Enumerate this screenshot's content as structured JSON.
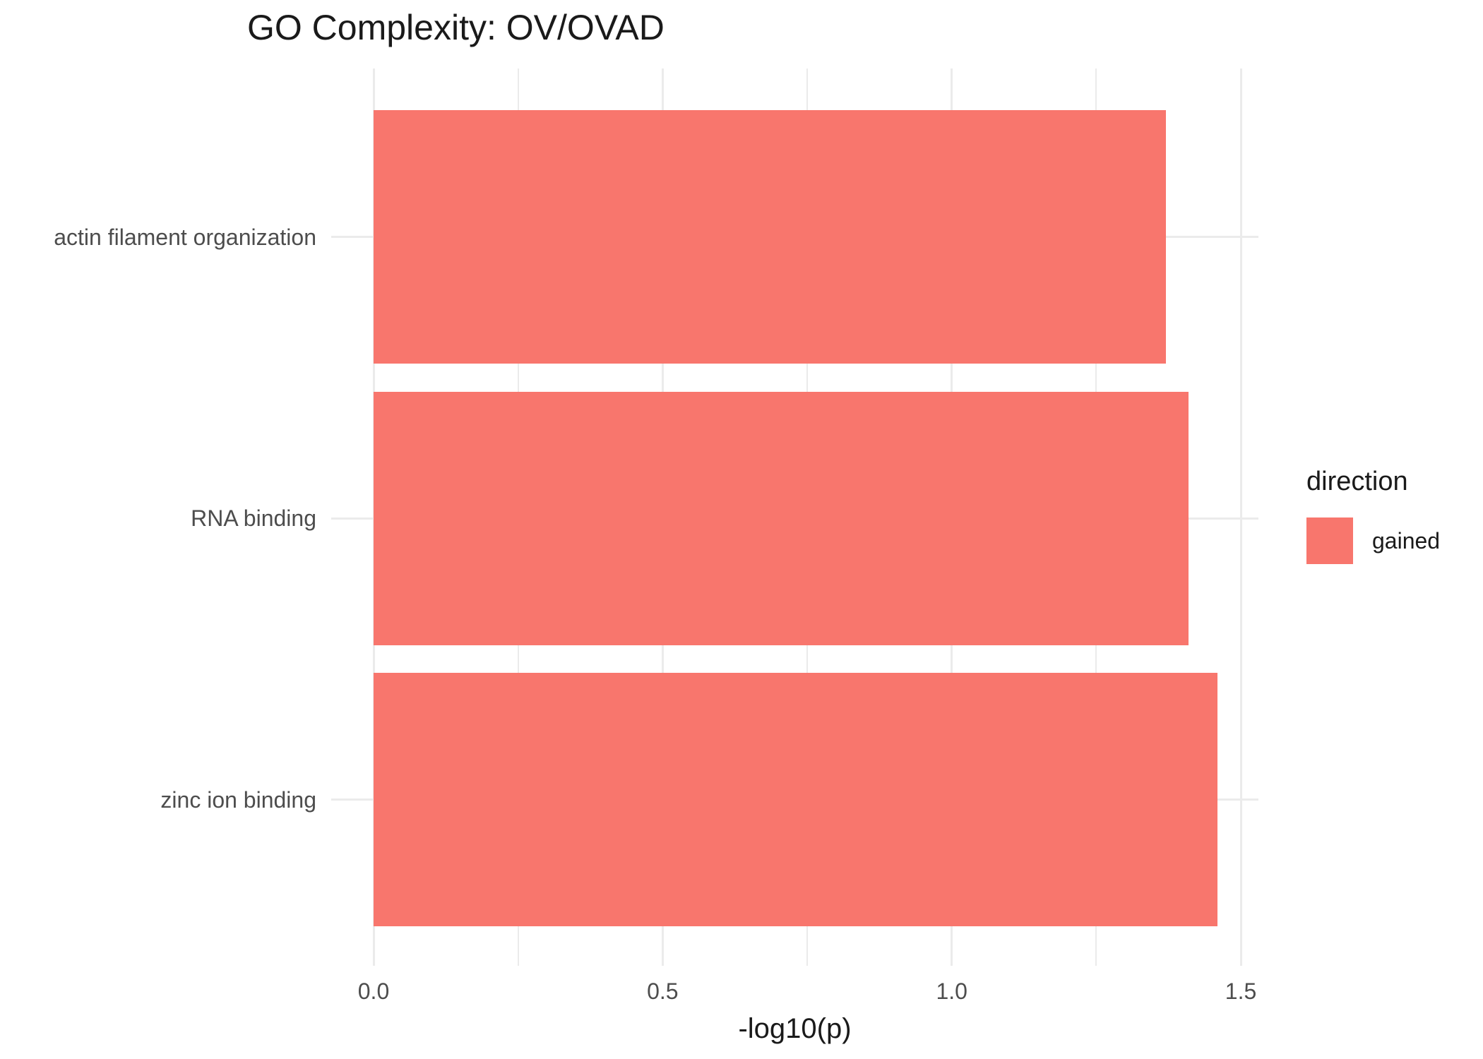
{
  "chart_data": {
    "type": "bar",
    "orientation": "horizontal",
    "title": "GO Complexity: OV/OVAD",
    "xlabel": "-log10(p)",
    "ylabel": "",
    "categories": [
      "actin filament organization",
      "RNA binding",
      "zinc ion binding"
    ],
    "series": [
      {
        "name": "gained",
        "color": "#F8766D",
        "values": [
          1.37,
          1.41,
          1.46
        ]
      }
    ],
    "xlim": [
      0,
      1.5
    ],
    "x_major_ticks": [
      0,
      0.5,
      1,
      1.5
    ],
    "x_tick_labels": [
      "0.0",
      "0.5",
      "1.0",
      "1.5"
    ],
    "x_minor_ticks": [
      0.25,
      0.75,
      1.25
    ],
    "grid": "major and minor vertical gridlines, horizontal category gridlines",
    "legend": {
      "title": "direction",
      "position": "right",
      "entries": [
        {
          "label": "gained",
          "color": "#F8766D"
        }
      ]
    },
    "colors": {
      "bar": "#F8766D",
      "grid": "#EBEBEB",
      "axis_text": "#4D4D4D",
      "title_text": "#1A1A1A",
      "background": "#FFFFFF"
    }
  }
}
